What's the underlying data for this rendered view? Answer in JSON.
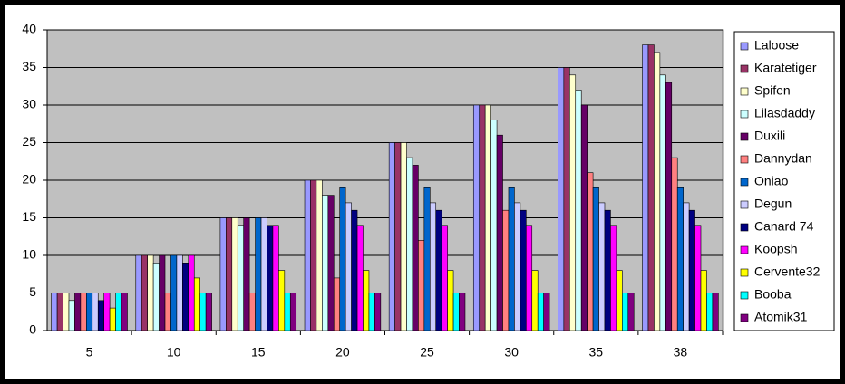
{
  "chart_data": {
    "type": "bar",
    "categories": [
      "5",
      "10",
      "15",
      "20",
      "25",
      "30",
      "35",
      "38"
    ],
    "series": [
      {
        "name": "Laloose",
        "color": "#9999ff",
        "values": [
          5,
          10,
          15,
          20,
          25,
          30,
          35,
          38
        ]
      },
      {
        "name": "Karatetiger",
        "color": "#993366",
        "values": [
          5,
          10,
          15,
          20,
          25,
          30,
          35,
          38
        ]
      },
      {
        "name": "Spifen",
        "color": "#ffffcc",
        "values": [
          5,
          10,
          15,
          20,
          25,
          30,
          34,
          37
        ]
      },
      {
        "name": "Lilasdaddy",
        "color": "#ccffff",
        "values": [
          4,
          9,
          14,
          18,
          23,
          28,
          32,
          34
        ]
      },
      {
        "name": "Duxili",
        "color": "#660066",
        "values": [
          5,
          10,
          15,
          18,
          22,
          26,
          30,
          33
        ]
      },
      {
        "name": "Dannydan",
        "color": "#ff8080",
        "values": [
          5,
          5,
          5,
          7,
          12,
          16,
          21,
          23
        ]
      },
      {
        "name": "Oniao",
        "color": "#0066cc",
        "values": [
          5,
          10,
          15,
          19,
          19,
          19,
          19,
          19
        ]
      },
      {
        "name": "Degun",
        "color": "#ccccff",
        "values": [
          5,
          10,
          15,
          17,
          17,
          17,
          17,
          17
        ]
      },
      {
        "name": "Canard 74",
        "color": "#000080",
        "values": [
          4,
          9,
          14,
          16,
          16,
          16,
          16,
          16
        ]
      },
      {
        "name": "Koopsh",
        "color": "#ff00ff",
        "values": [
          5,
          10,
          14,
          14,
          14,
          14,
          14,
          14
        ]
      },
      {
        "name": "Cervente32",
        "color": "#ffff00",
        "values": [
          3,
          7,
          8,
          8,
          8,
          8,
          8,
          8
        ]
      },
      {
        "name": "Booba",
        "color": "#00ffff",
        "values": [
          5,
          5,
          5,
          5,
          5,
          5,
          5,
          5
        ]
      },
      {
        "name": "Atomik31",
        "color": "#800080",
        "values": [
          5,
          5,
          5,
          5,
          5,
          5,
          5,
          5
        ]
      }
    ],
    "ylim": [
      0,
      40
    ],
    "yticks": [
      0,
      5,
      10,
      15,
      20,
      25,
      30,
      35,
      40
    ],
    "grid": true,
    "legend": "right"
  }
}
